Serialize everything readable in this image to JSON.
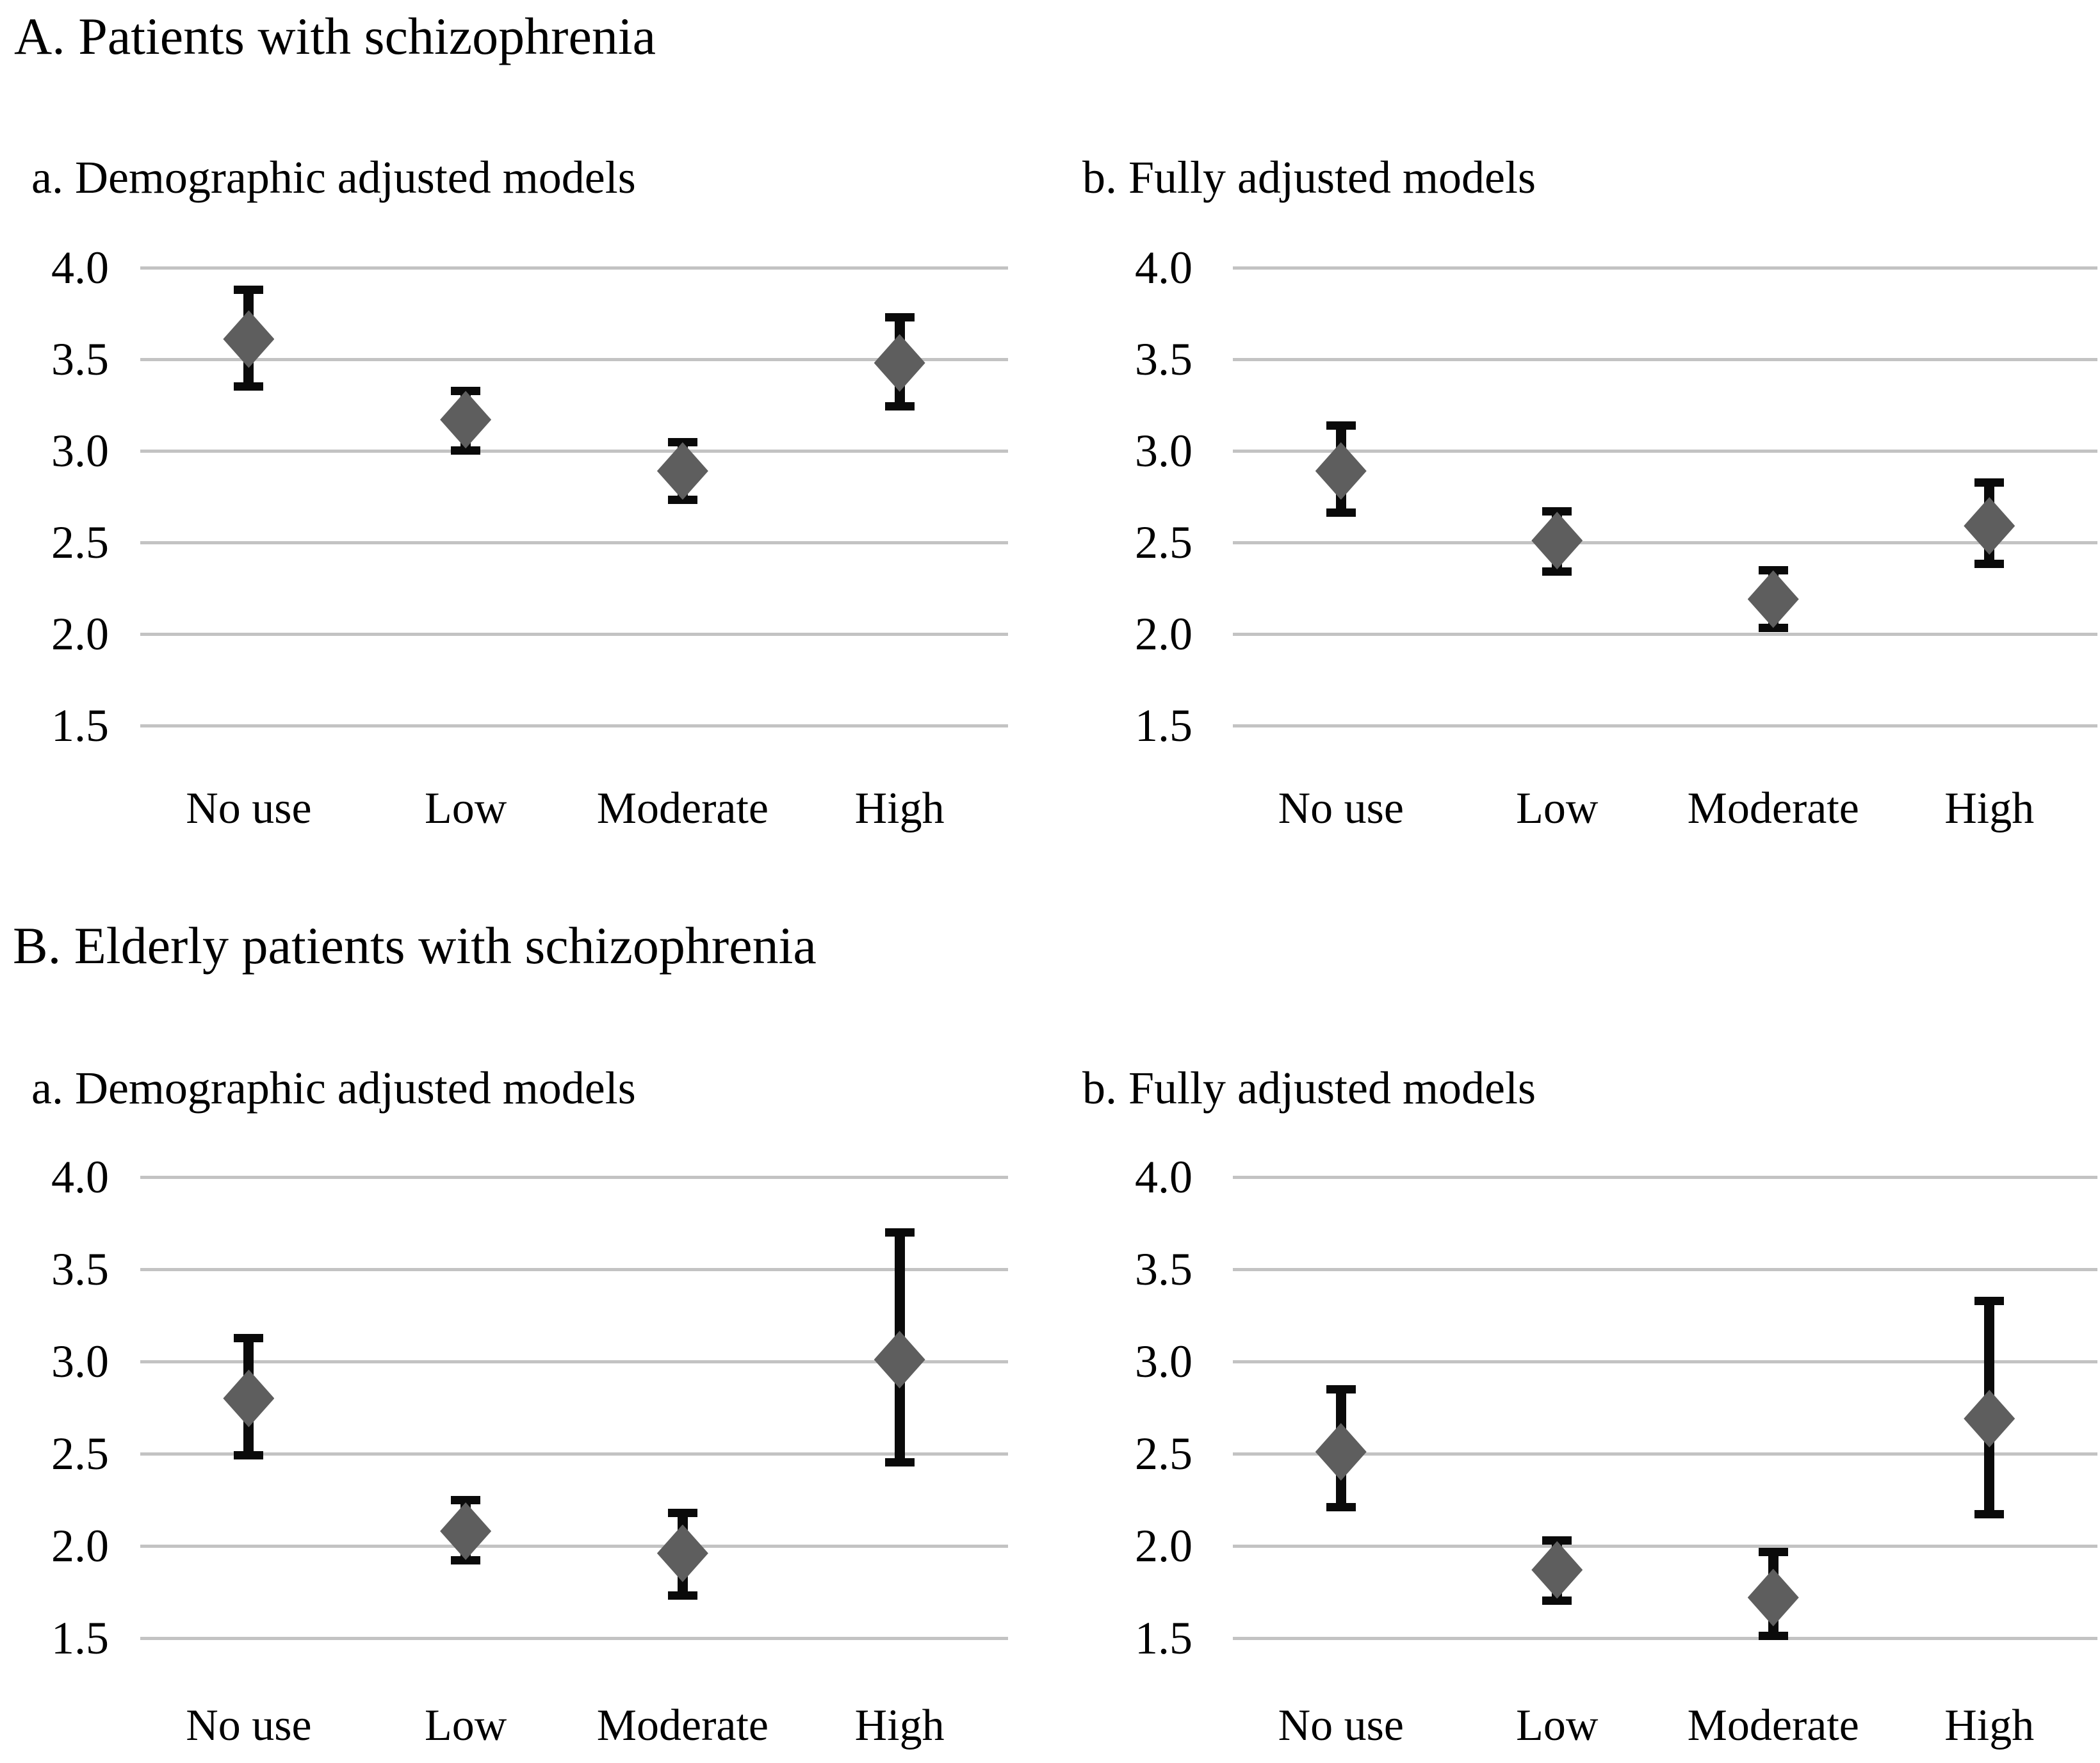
{
  "figure": {
    "sections": [
      {
        "label": "A",
        "title": "A. Patients with schizophrenia"
      },
      {
        "label": "B",
        "title": "B. Elderly patients with schizophrenia"
      }
    ]
  },
  "categories": [
    "No use",
    "Low",
    "Moderate",
    "High"
  ],
  "y_axis": {
    "min": 1.5,
    "max": 4.0,
    "step": 0.5,
    "tick_labels": [
      "4.0",
      "3.5",
      "3.0",
      "2.5",
      "2.0",
      "1.5"
    ]
  },
  "colors": {
    "marker": "#5e5e5e",
    "error_bar": "#0a0a0a",
    "gridline": "#c3c3c3",
    "text": "#000000",
    "background": "#ffffff"
  },
  "chart_data": [
    {
      "type": "scatter",
      "panel_id": "A-a",
      "section": "A. Patients with schizophrenia",
      "title": "a. Demographic adjusted models",
      "marker": "diamond",
      "error_bars": true,
      "grid": "horizontal",
      "legend": "none",
      "ylim": [
        1.5,
        4.0
      ],
      "yticks": [
        4.0,
        3.5,
        3.0,
        2.5,
        2.0,
        1.5
      ],
      "categories": [
        "No use",
        "Low",
        "Moderate",
        "High"
      ],
      "points": [
        {
          "category": "No use",
          "estimate": 3.61,
          "ci_lower": 3.35,
          "ci_upper": 3.88
        },
        {
          "category": "Low",
          "estimate": 3.17,
          "ci_lower": 3.0,
          "ci_upper": 3.33
        },
        {
          "category": "Moderate",
          "estimate": 2.89,
          "ci_lower": 2.73,
          "ci_upper": 3.05
        },
        {
          "category": "High",
          "estimate": 3.48,
          "ci_lower": 3.24,
          "ci_upper": 3.73
        }
      ]
    },
    {
      "type": "scatter",
      "panel_id": "A-b",
      "section": "A. Patients with schizophrenia",
      "title": "b. Fully adjusted models",
      "marker": "diamond",
      "error_bars": true,
      "grid": "horizontal",
      "legend": "none",
      "ylim": [
        1.5,
        4.0
      ],
      "yticks": [
        4.0,
        3.5,
        3.0,
        2.5,
        2.0,
        1.5
      ],
      "categories": [
        "No use",
        "Low",
        "Moderate",
        "High"
      ],
      "points": [
        {
          "category": "No use",
          "estimate": 2.89,
          "ci_lower": 2.66,
          "ci_upper": 3.14
        },
        {
          "category": "Low",
          "estimate": 2.51,
          "ci_lower": 2.34,
          "ci_upper": 2.67
        },
        {
          "category": "Moderate",
          "estimate": 2.19,
          "ci_lower": 2.03,
          "ci_upper": 2.35
        },
        {
          "category": "High",
          "estimate": 2.59,
          "ci_lower": 2.38,
          "ci_upper": 2.83
        }
      ]
    },
    {
      "type": "scatter",
      "panel_id": "B-a",
      "section": "B. Elderly patients with schizophrenia",
      "title": "a. Demographic adjusted models",
      "marker": "diamond",
      "error_bars": true,
      "grid": "horizontal",
      "legend": "none",
      "ylim": [
        1.5,
        4.0
      ],
      "yticks": [
        4.0,
        3.5,
        3.0,
        2.5,
        2.0,
        1.5
      ],
      "categories": [
        "No use",
        "Low",
        "Moderate",
        "High"
      ],
      "points": [
        {
          "category": "No use",
          "estimate": 2.8,
          "ci_lower": 2.49,
          "ci_upper": 3.13
        },
        {
          "category": "Low",
          "estimate": 2.08,
          "ci_lower": 1.92,
          "ci_upper": 2.25
        },
        {
          "category": "Moderate",
          "estimate": 1.96,
          "ci_lower": 1.73,
          "ci_upper": 2.18
        },
        {
          "category": "High",
          "estimate": 3.01,
          "ci_lower": 2.45,
          "ci_upper": 3.7
        }
      ]
    },
    {
      "type": "scatter",
      "panel_id": "B-b",
      "section": "B. Elderly patients with schizophrenia",
      "title": "b. Fully adjusted models",
      "marker": "diamond",
      "error_bars": true,
      "grid": "horizontal",
      "legend": "none",
      "ylim": [
        1.5,
        4.0
      ],
      "yticks": [
        4.0,
        3.5,
        3.0,
        2.5,
        2.0,
        1.5
      ],
      "categories": [
        "No use",
        "Low",
        "Moderate",
        "High"
      ],
      "points": [
        {
          "category": "No use",
          "estimate": 2.51,
          "ci_lower": 2.21,
          "ci_upper": 2.85
        },
        {
          "category": "Low",
          "estimate": 1.87,
          "ci_lower": 1.7,
          "ci_upper": 2.03
        },
        {
          "category": "Moderate",
          "estimate": 1.72,
          "ci_lower": 1.51,
          "ci_upper": 1.97
        },
        {
          "category": "High",
          "estimate": 2.69,
          "ci_lower": 2.17,
          "ci_upper": 3.33
        }
      ]
    }
  ]
}
